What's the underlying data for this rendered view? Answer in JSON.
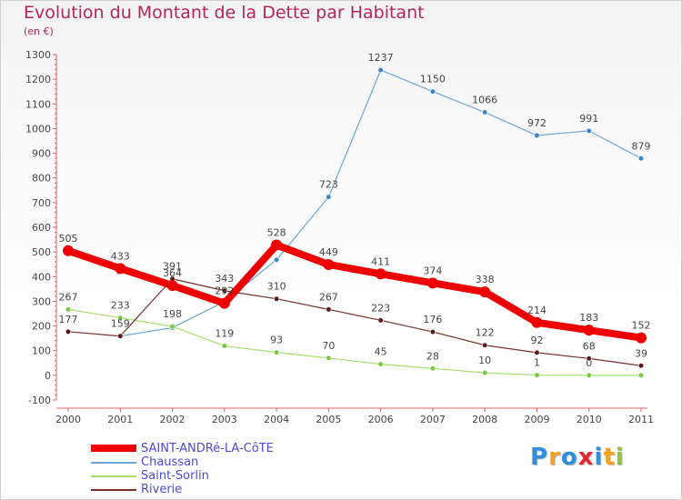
{
  "title": "Evolution du Montant de la Dette par Habitant",
  "subtitle": "(en €)",
  "logo": {
    "letters": [
      "P",
      "r",
      "o",
      "x",
      "i",
      "t",
      "i"
    ],
    "colors": [
      "#2f8fd8",
      "#f2a21b",
      "#2f8fd8",
      "#e2262e",
      "#2f8fd8",
      "#f2a21b",
      "#8cc63e"
    ]
  },
  "chart_data": {
    "type": "line",
    "title": "Evolution du Montant de la Dette par Habitant",
    "ylabel": "(en €)",
    "xlabel": "",
    "x": [
      "2000",
      "2001",
      "2002",
      "2003",
      "2004",
      "2005",
      "2006",
      "2007",
      "2008",
      "2009",
      "2010",
      "2011"
    ],
    "ylim": [
      -100,
      1300
    ],
    "yticks": [
      -100,
      0,
      100,
      200,
      300,
      400,
      500,
      600,
      700,
      800,
      900,
      1000,
      1100,
      1200,
      1300
    ],
    "grid": false,
    "legend_position": "bottom-left",
    "series": [
      {
        "name": "SAINT-ANDRé-LA-CôTE",
        "color": "#ee0000",
        "width": 8,
        "marker_color": "#ee0000",
        "values": [
          505,
          433,
          364,
          292,
          528,
          449,
          411,
          374,
          338,
          214,
          183,
          152
        ],
        "labels": [
          "505",
          "433",
          "364",
          "292",
          "528",
          "449",
          "411",
          "374",
          "338",
          "214",
          "183",
          "152"
        ]
      },
      {
        "name": "Chaussan",
        "color": "#6aa6d8",
        "width": 1.2,
        "marker_color": "#3a86c8",
        "values": [
          null,
          159,
          193,
          298,
          468,
          723,
          1237,
          1150,
          1066,
          972,
          991,
          879
        ],
        "labels": [
          "",
          "",
          "",
          "",
          "",
          "723",
          "1237",
          "1150",
          "1066",
          "972",
          "991",
          "879"
        ]
      },
      {
        "name": "Saint-Sorlin",
        "color": "#a6df6c",
        "width": 1.2,
        "marker_color": "#7ac943",
        "values": [
          267,
          233,
          198,
          119,
          93,
          70,
          45,
          28,
          10,
          1,
          0,
          0
        ],
        "labels": [
          "267",
          "233",
          "198",
          "119",
          "93",
          "70",
          "45",
          "28",
          "10",
          "1",
          "0",
          ""
        ]
      },
      {
        "name": "Riverie",
        "color": "#7a2e2e",
        "width": 1.2,
        "marker_color": "#5a1a1a",
        "values": [
          177,
          159,
          391,
          343,
          310,
          267,
          223,
          176,
          122,
          92,
          68,
          39
        ],
        "labels": [
          "177",
          "159",
          "391",
          "343",
          "310",
          "267",
          "223",
          "176",
          "122",
          "92",
          "68",
          "39"
        ]
      }
    ]
  }
}
